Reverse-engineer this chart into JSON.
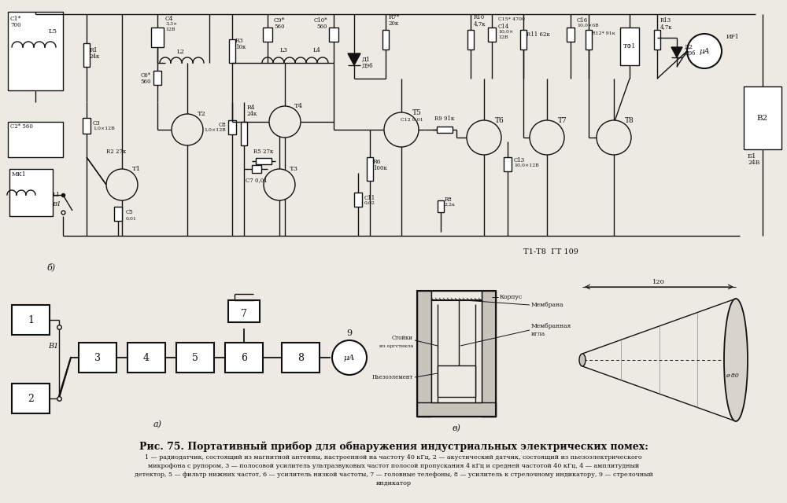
{
  "title": "Рис. 75. Портативный прибор для обнаружения индустриальных электрических помех:",
  "caption_lines": [
    "1 — радиодатчик, состоящий из магнитной антенны, настроенной на частоту 40 кГц, 2 — акустический датчик, состоящий из пьезоэлектрического",
    "микрофона с рупором, 3 — полосовой усилитель ультразвуковых частот полосой пропускания 4 кГц и средней частотой 40 кГц, 4 — амплитудный",
    "детектор, 5 — фильтр нижних частот, 6 — усилитель низкой частоты, 7 — головные телефоны, 8 — усилитель к стрелочному индикатору, 9 — стрелочный",
    "индикатор"
  ],
  "bg_color": "#edeae4",
  "line_color": "#111111",
  "block_fill": "#ffffff"
}
